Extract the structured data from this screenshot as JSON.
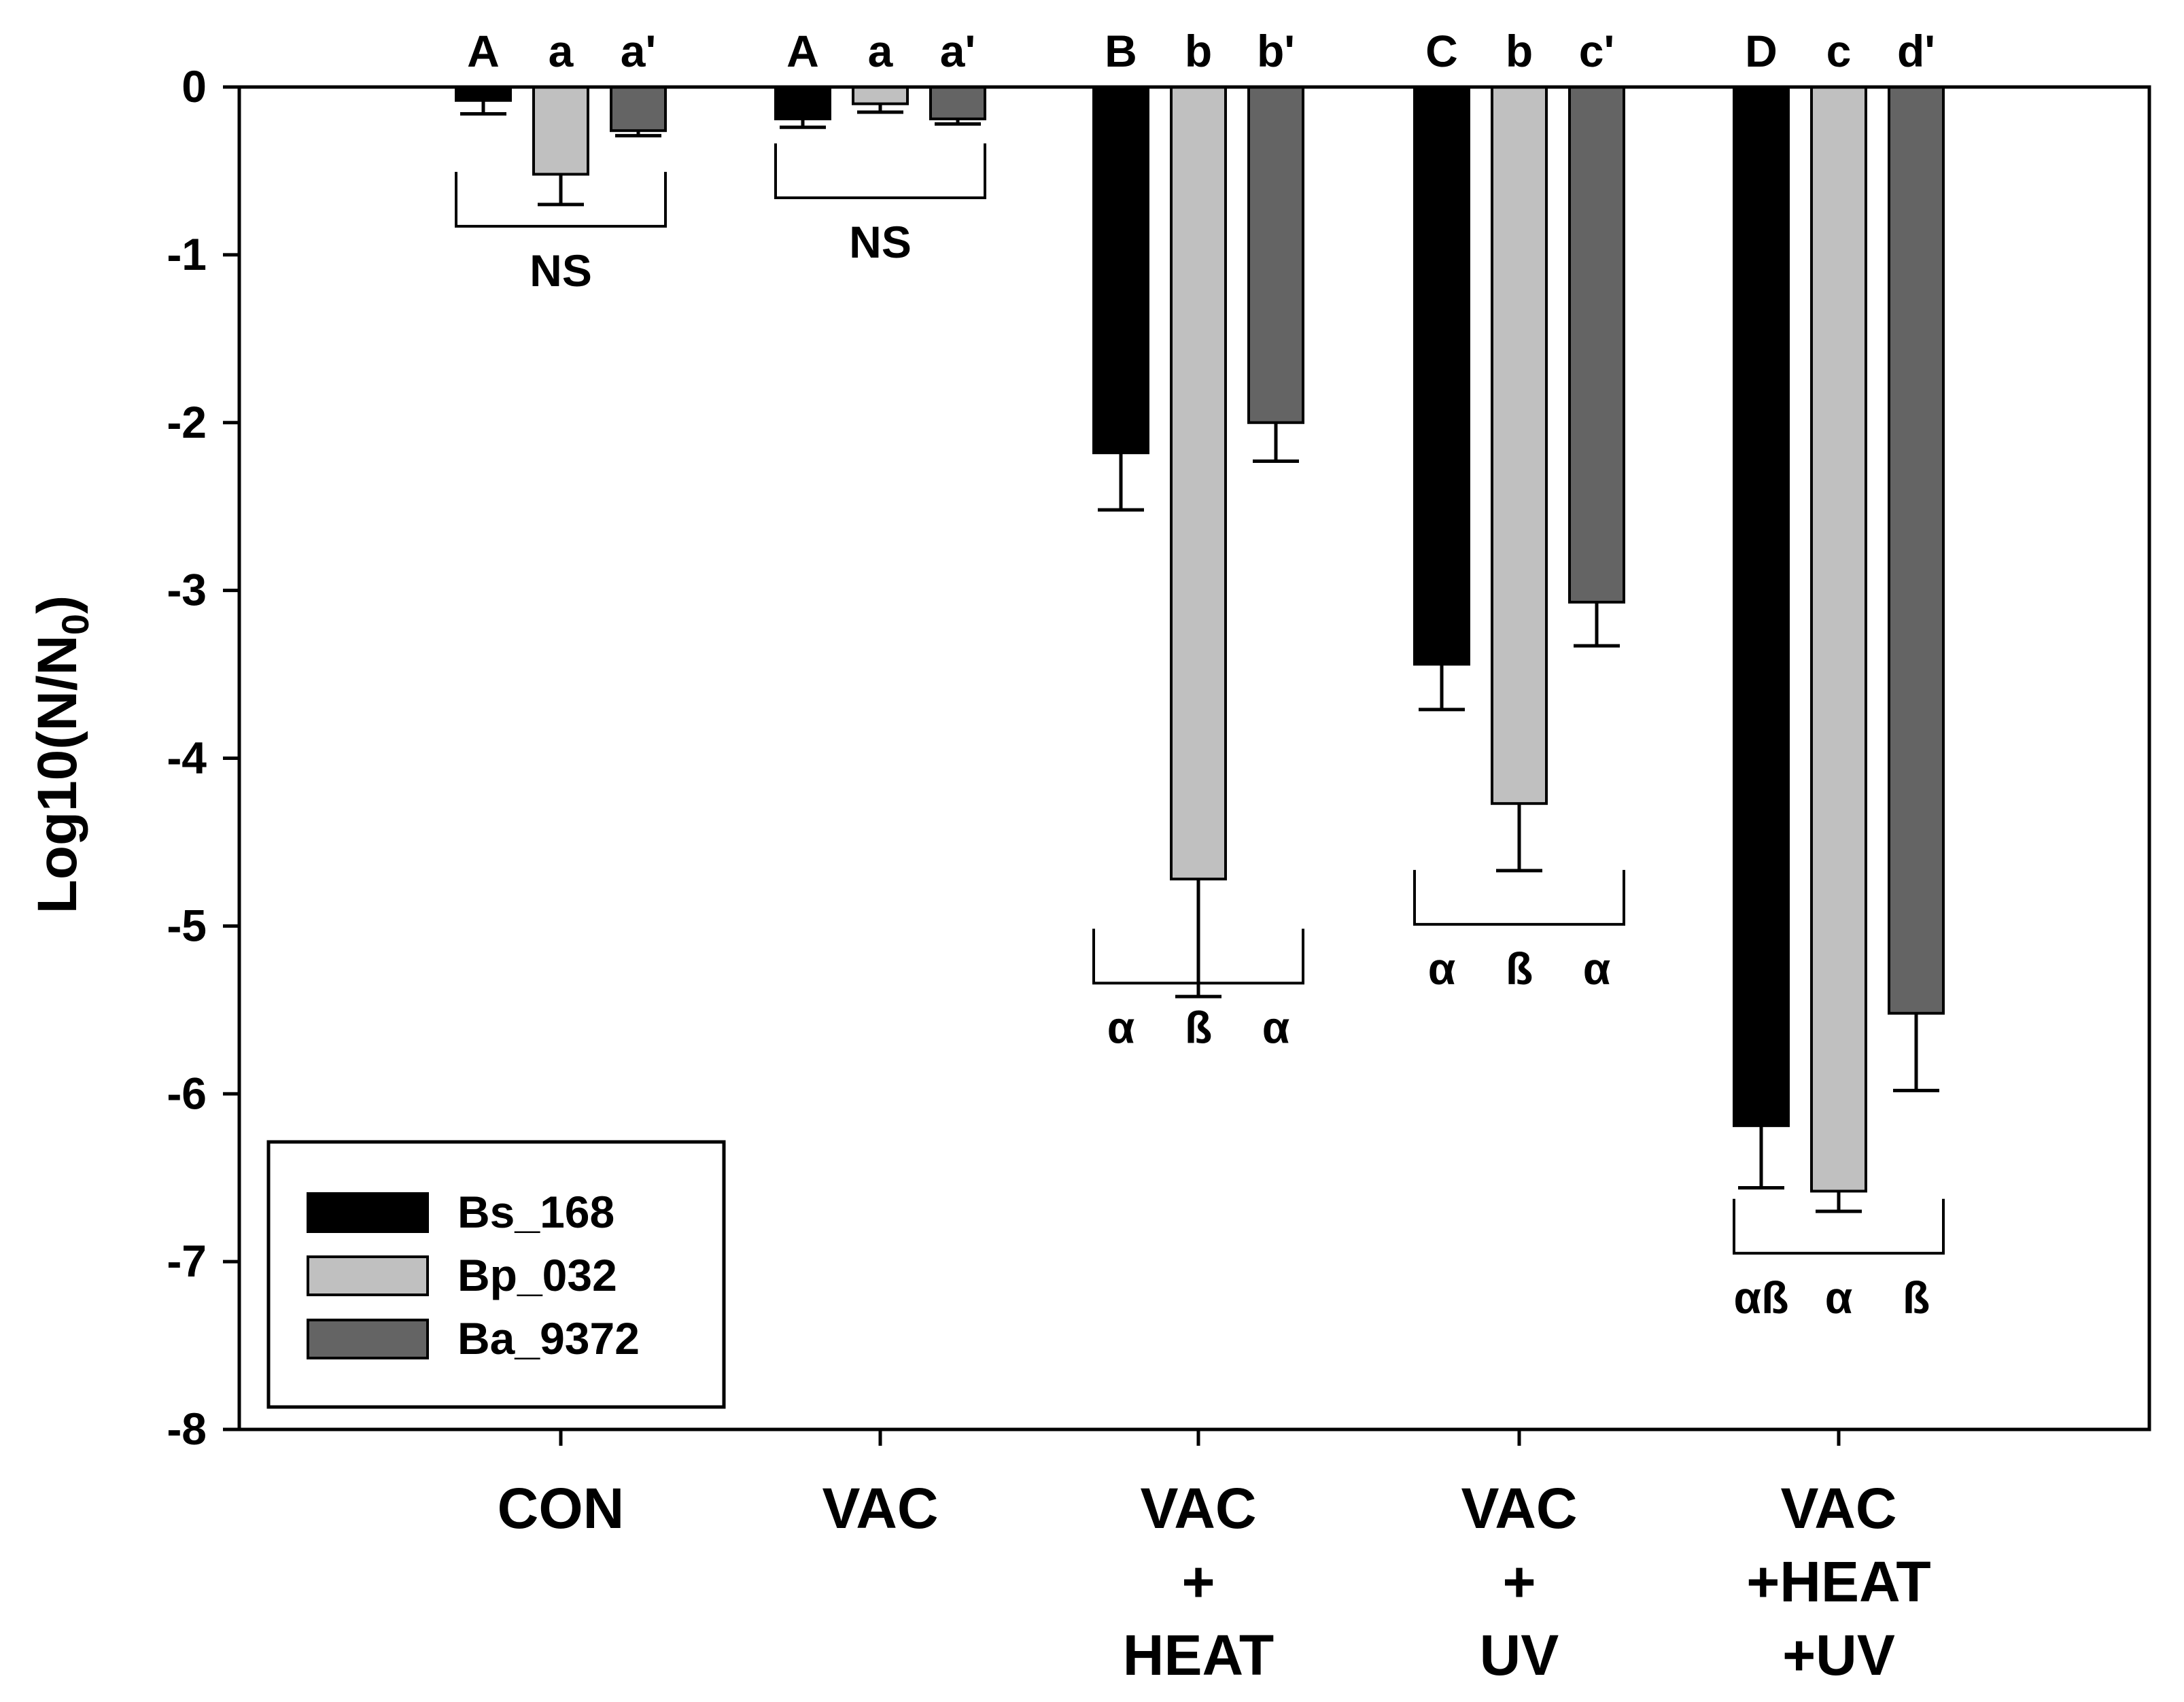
{
  "chart_data": {
    "type": "bar",
    "title": "",
    "xlabel": "",
    "ylabel": "Log10(N/N",
    "ylabel_subscript": "0",
    "ylabel_close": ")",
    "ylim": [
      -8,
      0
    ],
    "yticks": [
      "0",
      "-1",
      "-2",
      "-3",
      "-4",
      "-5",
      "-6",
      "-7",
      "-8"
    ],
    "grid": false,
    "legend_position": "bottom-left",
    "categories": [
      {
        "lines": [
          "CON"
        ]
      },
      {
        "lines": [
          "VAC"
        ]
      },
      {
        "lines": [
          "VAC",
          "+",
          "HEAT"
        ]
      },
      {
        "lines": [
          "VAC",
          "+",
          "UV"
        ]
      },
      {
        "lines": [
          "VAC",
          "+HEAT",
          "+UV"
        ]
      }
    ],
    "series": [
      {
        "name": "Bs_168",
        "color": "#000000",
        "values": [
          -0.08,
          -0.19,
          -2.18,
          -3.44,
          -6.19
        ],
        "errors": [
          0.08,
          0.05,
          0.34,
          0.27,
          0.37
        ],
        "letters": [
          "A",
          "A",
          "B",
          "C",
          "D"
        ]
      },
      {
        "name": "Bp_032",
        "color": "#c0c0c0",
        "values": [
          -0.52,
          -0.1,
          -4.72,
          -4.27,
          -6.58
        ],
        "errors": [
          0.18,
          0.05,
          0.7,
          0.4,
          0.12
        ],
        "letters": [
          "a",
          "a",
          "b",
          "b",
          "c"
        ]
      },
      {
        "name": "Ba_9372",
        "color": "#646464",
        "values": [
          -0.26,
          -0.19,
          -2.0,
          -3.07,
          -5.52
        ],
        "errors": [
          0.03,
          0.03,
          0.23,
          0.26,
          0.46
        ],
        "letters": [
          "a'",
          "a'",
          "b'",
          "c'",
          "d'"
        ]
      }
    ],
    "group_brackets": [
      {
        "y": -0.83,
        "labels": [
          {
            "text": "NS",
            "pos": "center"
          }
        ]
      },
      {
        "y": -0.66,
        "labels": [
          {
            "text": "NS",
            "pos": "center"
          }
        ]
      },
      {
        "y": -5.34,
        "labels": [
          {
            "text": "α",
            "pos": 0
          },
          {
            "text": "ß",
            "pos": 1
          },
          {
            "text": "α",
            "pos": 2
          }
        ]
      },
      {
        "y": -4.99,
        "labels": [
          {
            "text": "α",
            "pos": 0
          },
          {
            "text": "ß",
            "pos": 1
          },
          {
            "text": "α",
            "pos": 2
          }
        ]
      },
      {
        "y": -6.95,
        "labels": [
          {
            "text": "αß",
            "pos": 0
          },
          {
            "text": "α",
            "pos": 1
          },
          {
            "text": "ß",
            "pos": 2
          }
        ]
      }
    ]
  }
}
